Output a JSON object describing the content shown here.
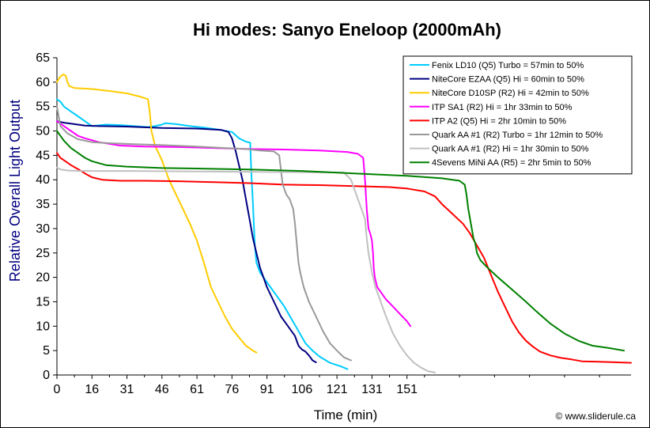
{
  "chart_data": {
    "type": "line",
    "title": "Hi modes: Sanyo Eneloop (2000mAh)",
    "xlabel": "Time (min)",
    "ylabel": "Relative Overall Light Output",
    "credit": "© www.sliderule.ca",
    "xlim": [
      0,
      164
    ],
    "ylim": [
      0,
      65
    ],
    "x_ticks": [
      "0",
      "16",
      "31",
      "46",
      "61",
      "76",
      "91",
      "106",
      "121",
      "131",
      "151"
    ],
    "y_ticks": [
      0,
      5,
      10,
      15,
      20,
      25,
      30,
      35,
      40,
      45,
      50,
      55,
      60,
      65
    ],
    "grid": false,
    "legend_position": "top-right",
    "series": [
      {
        "name": "Fenix LD10 (Q5) Turbo = 57min to 50%",
        "color": "#00ccff",
        "points": [
          [
            0,
            56.5
          ],
          [
            1,
            56
          ],
          [
            2,
            55
          ],
          [
            4,
            54
          ],
          [
            6,
            53
          ],
          [
            8,
            52
          ],
          [
            10,
            51
          ],
          [
            14,
            51.3
          ],
          [
            18,
            51.2
          ],
          [
            22,
            51
          ],
          [
            26,
            50.8
          ],
          [
            28,
            51
          ],
          [
            30,
            51.3
          ],
          [
            31,
            51.6
          ],
          [
            34,
            51.4
          ],
          [
            38,
            51
          ],
          [
            42,
            50.7
          ],
          [
            46,
            50.3
          ],
          [
            50,
            49.8
          ],
          [
            52,
            48.5
          ],
          [
            54,
            47.8
          ],
          [
            55.2,
            47.6
          ],
          [
            55.5,
            42
          ],
          [
            56,
            35
          ],
          [
            56.5,
            27
          ],
          [
            57,
            23
          ],
          [
            58,
            21
          ],
          [
            59,
            20
          ],
          [
            61,
            18
          ],
          [
            63,
            16
          ],
          [
            65,
            14
          ],
          [
            67,
            11.5
          ],
          [
            69,
            9
          ],
          [
            71,
            6.5
          ],
          [
            73,
            5
          ],
          [
            75,
            3.8
          ],
          [
            78,
            2.5
          ],
          [
            81,
            1.8
          ],
          [
            83,
            1.2
          ]
        ]
      },
      {
        "name": "NiteCore EZAA (Q5) Hi = 60min to 50%",
        "color": "#000080",
        "points": [
          [
            0,
            52
          ],
          [
            2,
            51.7
          ],
          [
            5,
            51.4
          ],
          [
            8,
            51.1
          ],
          [
            12,
            51
          ],
          [
            20,
            50.9
          ],
          [
            30,
            50.6
          ],
          [
            40,
            50.5
          ],
          [
            47,
            50.2
          ],
          [
            49,
            49.8
          ],
          [
            50,
            48.5
          ],
          [
            51,
            46
          ],
          [
            52,
            43
          ],
          [
            53,
            40
          ],
          [
            54,
            36
          ],
          [
            55,
            32
          ],
          [
            56,
            28
          ],
          [
            57,
            25
          ],
          [
            58,
            22
          ],
          [
            60,
            18
          ],
          [
            62,
            15
          ],
          [
            64,
            12
          ],
          [
            66,
            10
          ],
          [
            68,
            8
          ],
          [
            69,
            6
          ],
          [
            70,
            5.2
          ],
          [
            71,
            4.8
          ],
          [
            72,
            4
          ],
          [
            73,
            3
          ],
          [
            74,
            2.6
          ]
        ]
      },
      {
        "name": "NiteCore D10SP (R2) Hi = 42min to 50%",
        "color": "#ffcc00",
        "points": [
          [
            0,
            60
          ],
          [
            0.8,
            61
          ],
          [
            1.8,
            61.6
          ],
          [
            2.5,
            61.3
          ],
          [
            3,
            60
          ],
          [
            3.5,
            59.2
          ],
          [
            5,
            58.8
          ],
          [
            10,
            58.6
          ],
          [
            15,
            58.2
          ],
          [
            20,
            57.7
          ],
          [
            24,
            57
          ],
          [
            26,
            56.5
          ],
          [
            26.5,
            54
          ],
          [
            27,
            50
          ],
          [
            28,
            47
          ],
          [
            30,
            44
          ],
          [
            32,
            40
          ],
          [
            34,
            37
          ],
          [
            36,
            34
          ],
          [
            38,
            31
          ],
          [
            40,
            27.5
          ],
          [
            42,
            23
          ],
          [
            44,
            18
          ],
          [
            46,
            15
          ],
          [
            48,
            12
          ],
          [
            50,
            9.5
          ],
          [
            52,
            7.7
          ],
          [
            54,
            6
          ],
          [
            56,
            5
          ],
          [
            57,
            4.6
          ]
        ]
      },
      {
        "name": "ITP SA1 (R2) Hi = 1hr 33min to 50%",
        "color": "#ff00ff",
        "points": [
          [
            0,
            52
          ],
          [
            2,
            51
          ],
          [
            4,
            50
          ],
          [
            6,
            49
          ],
          [
            8,
            48.5
          ],
          [
            12,
            47.7
          ],
          [
            18,
            47
          ],
          [
            25,
            46.8
          ],
          [
            35,
            46.7
          ],
          [
            45,
            46.5
          ],
          [
            55,
            46.3
          ],
          [
            65,
            46.2
          ],
          [
            75,
            46
          ],
          [
            83,
            45.7
          ],
          [
            86,
            45.3
          ],
          [
            87.5,
            44.5
          ],
          [
            88,
            40
          ],
          [
            88.5,
            34
          ],
          [
            89,
            30
          ],
          [
            89.5,
            29
          ],
          [
            90,
            27.5
          ],
          [
            90.3,
            25
          ],
          [
            90.5,
            22
          ],
          [
            90.8,
            20
          ],
          [
            91.5,
            18
          ],
          [
            92.5,
            17
          ],
          [
            94,
            15.5
          ],
          [
            96,
            14
          ],
          [
            98,
            12.5
          ],
          [
            100,
            11
          ],
          [
            101,
            10
          ]
        ]
      },
      {
        "name": "ITP A2 (Q5) Hi = 2hr 10min to 50%",
        "color": "#ff0000",
        "points": [
          [
            0,
            45.5
          ],
          [
            0.5,
            45
          ],
          [
            1,
            44.5
          ],
          [
            2,
            44
          ],
          [
            4,
            43
          ],
          [
            6,
            42.2
          ],
          [
            8,
            41.3
          ],
          [
            10,
            40.5
          ],
          [
            13,
            40
          ],
          [
            18,
            39.8
          ],
          [
            25,
            39.8
          ],
          [
            35,
            39.7
          ],
          [
            45,
            39.5
          ],
          [
            55,
            39.3
          ],
          [
            65,
            39
          ],
          [
            75,
            38.9
          ],
          [
            85,
            38.7
          ],
          [
            95,
            38.5
          ],
          [
            100,
            38.2
          ],
          [
            105,
            37.6
          ],
          [
            108,
            36.6
          ],
          [
            110,
            35
          ],
          [
            113,
            33
          ],
          [
            116,
            31
          ],
          [
            118,
            29
          ],
          [
            120,
            26.5
          ],
          [
            122,
            24
          ],
          [
            124,
            20.5
          ],
          [
            126,
            17
          ],
          [
            128,
            14
          ],
          [
            130,
            11
          ],
          [
            132,
            8.7
          ],
          [
            134,
            7
          ],
          [
            136,
            5.8
          ],
          [
            138,
            4.8
          ],
          [
            141,
            4
          ],
          [
            144,
            3.5
          ],
          [
            147,
            3.2
          ],
          [
            150,
            2.8
          ],
          [
            155,
            2.7
          ],
          [
            160,
            2.6
          ],
          [
            164,
            2.5
          ]
        ]
      },
      {
        "name": "Quark AA #1 (R2) Turbo = 1hr 12min to 50%",
        "color": "#999999",
        "points": [
          [
            0,
            55
          ],
          [
            0.5,
            53
          ],
          [
            1,
            51
          ],
          [
            3,
            49.5
          ],
          [
            6,
            48.3
          ],
          [
            10,
            47.7
          ],
          [
            15,
            47.5
          ],
          [
            22,
            47.3
          ],
          [
            30,
            47.1
          ],
          [
            40,
            46.8
          ],
          [
            48,
            46.5
          ],
          [
            54,
            46.3
          ],
          [
            58,
            46
          ],
          [
            62,
            45.8
          ],
          [
            63.5,
            45
          ],
          [
            64,
            42
          ],
          [
            64.5,
            39
          ],
          [
            65.5,
            37
          ],
          [
            66.5,
            36
          ],
          [
            67.5,
            34
          ],
          [
            68,
            31
          ],
          [
            68.5,
            27
          ],
          [
            69,
            23
          ],
          [
            69.5,
            21
          ],
          [
            70.5,
            18
          ],
          [
            72,
            15
          ],
          [
            74,
            12
          ],
          [
            76,
            9
          ],
          [
            78,
            6.5
          ],
          [
            80,
            5
          ],
          [
            82,
            3.6
          ],
          [
            84,
            3
          ]
        ]
      },
      {
        "name": "Quark AA #1 (R2) Hi = 1hr 30min to 50%",
        "color": "#c0c0c0",
        "points": [
          [
            0,
            42.5
          ],
          [
            1,
            42.1
          ],
          [
            3,
            41.9
          ],
          [
            6,
            41.8
          ],
          [
            20,
            41.8
          ],
          [
            40,
            41.7
          ],
          [
            60,
            41.6
          ],
          [
            75,
            41.5
          ],
          [
            82,
            41.5
          ],
          [
            84,
            40
          ],
          [
            85,
            38
          ],
          [
            86,
            36
          ],
          [
            87,
            34
          ],
          [
            88,
            32
          ],
          [
            88.5,
            28
          ],
          [
            89,
            25
          ],
          [
            90,
            21
          ],
          [
            91,
            18
          ],
          [
            92,
            16
          ],
          [
            94,
            12
          ],
          [
            96,
            8.5
          ],
          [
            98,
            6
          ],
          [
            100,
            4
          ],
          [
            102,
            2.5
          ],
          [
            104,
            1.5
          ],
          [
            106,
            0.8
          ],
          [
            108,
            0.5
          ]
        ]
      },
      {
        "name": "4Sevens MiNi AA (R5) = 2hr 5min to 50%",
        "color": "#008000",
        "points": [
          [
            0,
            50
          ],
          [
            1,
            49
          ],
          [
            2,
            48
          ],
          [
            4,
            46.5
          ],
          [
            6,
            45.5
          ],
          [
            8,
            44.5
          ],
          [
            10,
            43.8
          ],
          [
            14,
            43
          ],
          [
            20,
            42.7
          ],
          [
            30,
            42.4
          ],
          [
            40,
            42.3
          ],
          [
            55,
            42.1
          ],
          [
            70,
            41.8
          ],
          [
            85,
            41.3
          ],
          [
            100,
            40.8
          ],
          [
            110,
            40.3
          ],
          [
            115,
            39.8
          ],
          [
            116.5,
            39
          ],
          [
            117,
            37
          ],
          [
            117.5,
            34
          ],
          [
            118,
            32
          ],
          [
            118.5,
            30
          ],
          [
            119,
            28
          ],
          [
            119.5,
            27
          ],
          [
            120,
            25
          ],
          [
            121,
            23.5
          ],
          [
            123,
            22
          ],
          [
            126,
            20
          ],
          [
            130,
            17.5
          ],
          [
            134,
            15
          ],
          [
            137,
            13
          ],
          [
            141,
            10.5
          ],
          [
            145,
            8.5
          ],
          [
            149,
            7
          ],
          [
            153,
            6
          ],
          [
            158,
            5.5
          ],
          [
            162,
            5
          ]
        ]
      }
    ]
  }
}
